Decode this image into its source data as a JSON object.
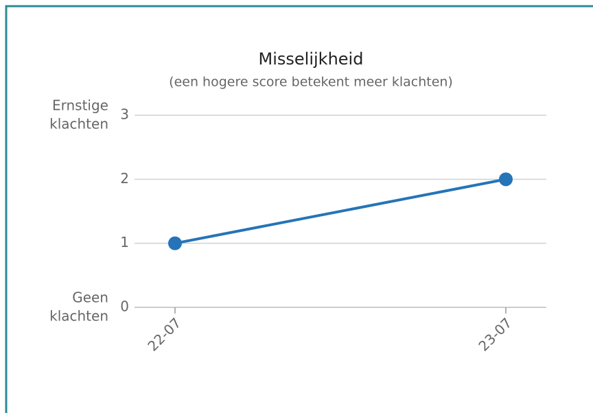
{
  "chart_data": {
    "type": "line",
    "title": "Misselijkheid",
    "subtitle": "(een hogere score betekent meer klachten)",
    "categories": [
      "22-07",
      "23-07"
    ],
    "values": [
      1,
      2
    ],
    "color": "#2574b8",
    "ylim": [
      0,
      3
    ],
    "yticks": [
      0,
      1,
      2,
      3
    ],
    "grid": true,
    "top_label": [
      "Ernstige",
      "klachten"
    ],
    "bottom_label": [
      "Geen",
      "klachten"
    ]
  }
}
